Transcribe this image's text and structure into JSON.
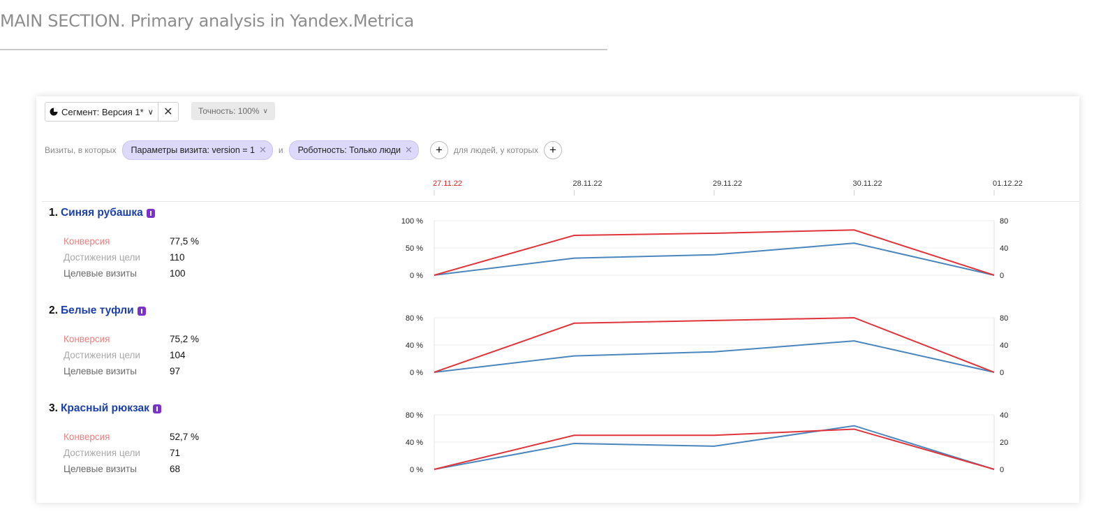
{
  "page": {
    "header_strong": "MAIN SECTION",
    "header_rest": ". Primary analysis in Yandex.Metrica"
  },
  "toolbar": {
    "segment_label": "Сегмент: Версия 1*",
    "accuracy_label": "Точность: 100%"
  },
  "filters": {
    "prefix": "Визиты, в которых",
    "chip1": "Параметры визита: version = 1",
    "and": "и",
    "chip2": "Роботность: Только люди",
    "people_label": "для людей, у которых"
  },
  "colors": {
    "conversion_line": "#e0343b",
    "visits_line": "#4a86bd",
    "highlight_date": "#d0262a",
    "goal_link": "#1c3fae"
  },
  "timeline": {
    "dates": [
      "27.11.22",
      "28.11.22",
      "29.11.22",
      "30.11.22",
      "01.12.22"
    ],
    "highlighted_index": 0
  },
  "metric_labels": {
    "conversion": "Конверсия",
    "achievements": "Достижения цели",
    "target_visits": "Целевые визиты"
  },
  "goals": [
    {
      "number": "1.",
      "name": "Синяя рубашка",
      "conversion": "77,5 %",
      "achievements": "110",
      "target_visits": "100",
      "left_axis": [
        "100 %",
        "50 %",
        "0 %"
      ],
      "right_axis": [
        "80",
        "40",
        "0"
      ],
      "left_max": 100,
      "right_max": 80,
      "conversion_series": [
        0,
        73,
        77,
        83,
        0
      ],
      "visits_series": [
        0,
        25,
        30,
        47,
        0
      ]
    },
    {
      "number": "2.",
      "name": "Белые туфли",
      "conversion": "75,2 %",
      "achievements": "104",
      "target_visits": "97",
      "left_axis": [
        "80 %",
        "40 %",
        "0 %"
      ],
      "right_axis": [
        "80",
        "40",
        "0"
      ],
      "left_max": 80,
      "right_max": 80,
      "conversion_series": [
        0,
        72,
        76,
        80,
        0
      ],
      "visits_series": [
        0,
        24,
        30,
        46,
        0
      ]
    },
    {
      "number": "3.",
      "name": "Красный рюкзак",
      "conversion": "52,7 %",
      "achievements": "71",
      "target_visits": "68",
      "left_axis": [
        "80 %",
        "40 %",
        "0 %"
      ],
      "right_axis": [
        "40",
        "20",
        "0"
      ],
      "left_max": 80,
      "right_max": 40,
      "conversion_series": [
        0,
        50,
        50,
        59,
        0
      ],
      "visits_series": [
        0,
        19,
        17,
        32,
        0
      ]
    }
  ]
}
